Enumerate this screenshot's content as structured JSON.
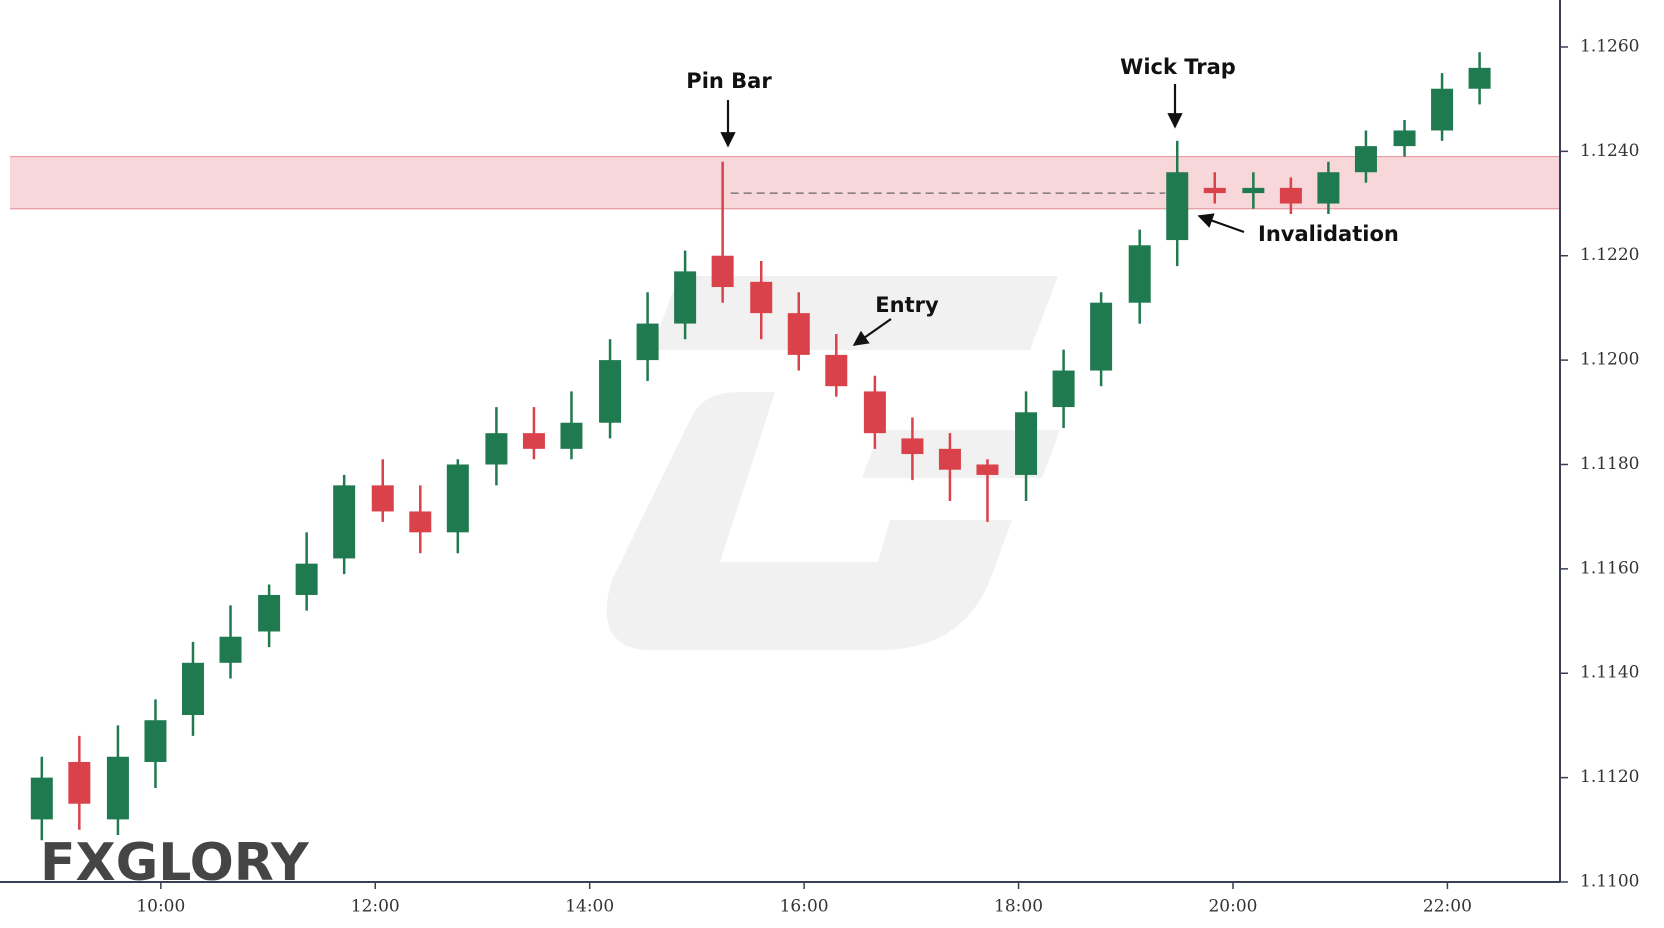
{
  "chart_data": {
    "type": "candlestick",
    "x": [
      8.89,
      9.24,
      9.6,
      9.95,
      10.3,
      10.65,
      11.01,
      11.36,
      11.71,
      12.07,
      12.42,
      12.77,
      13.13,
      13.48,
      13.83,
      14.19,
      14.54,
      14.89,
      15.24,
      15.6,
      15.95,
      16.3,
      16.66,
      17.01,
      17.36,
      17.71,
      18.07,
      18.42,
      18.77,
      19.13,
      19.48,
      19.83,
      20.19,
      20.54,
      20.89,
      21.24,
      21.6,
      21.95,
      22.3
    ],
    "open": [
      1.1112,
      1.1123,
      1.1112,
      1.1123,
      1.1132,
      1.1142,
      1.1148,
      1.1155,
      1.1162,
      1.1176,
      1.1171,
      1.1167,
      1.118,
      1.1186,
      1.1183,
      1.1188,
      1.12,
      1.1207,
      1.122,
      1.1215,
      1.1209,
      1.1201,
      1.1194,
      1.1185,
      1.1183,
      1.118,
      1.1178,
      1.1191,
      1.1198,
      1.1211,
      1.1223,
      1.1233,
      1.1232,
      1.1233,
      1.123,
      1.1236,
      1.1241,
      1.1244,
      1.1252
    ],
    "high": [
      1.1124,
      1.1128,
      1.113,
      1.1135,
      1.1146,
      1.1153,
      1.1157,
      1.1167,
      1.1178,
      1.1181,
      1.1176,
      1.1181,
      1.1191,
      1.1191,
      1.1194,
      1.1204,
      1.1213,
      1.1221,
      1.1238,
      1.1219,
      1.1213,
      1.1205,
      1.1197,
      1.1189,
      1.1186,
      1.1181,
      1.1194,
      1.1202,
      1.1213,
      1.1225,
      1.1242,
      1.1236,
      1.1236,
      1.1235,
      1.1238,
      1.1244,
      1.1246,
      1.1255,
      1.1259
    ],
    "low": [
      1.1108,
      1.111,
      1.1109,
      1.1118,
      1.1128,
      1.1139,
      1.1145,
      1.1152,
      1.1159,
      1.1169,
      1.1163,
      1.1163,
      1.1176,
      1.1181,
      1.1181,
      1.1185,
      1.1196,
      1.1204,
      1.1211,
      1.1204,
      1.1198,
      1.1193,
      1.1183,
      1.1177,
      1.1173,
      1.1169,
      1.1173,
      1.1187,
      1.1195,
      1.1207,
      1.1218,
      1.123,
      1.1229,
      1.1228,
      1.1228,
      1.1234,
      1.1239,
      1.1242,
      1.1249
    ],
    "close": [
      1.112,
      1.1115,
      1.1124,
      1.1131,
      1.1142,
      1.1147,
      1.1155,
      1.1161,
      1.1176,
      1.1171,
      1.1167,
      1.118,
      1.1186,
      1.1183,
      1.1188,
      1.12,
      1.1207,
      1.1217,
      1.1214,
      1.1209,
      1.1201,
      1.1195,
      1.1186,
      1.1182,
      1.1179,
      1.1178,
      1.119,
      1.1198,
      1.1211,
      1.1222,
      1.1236,
      1.1232,
      1.1233,
      1.123,
      1.1236,
      1.1241,
      1.1244,
      1.1252,
      1.1256
    ],
    "up_color": "#1f7a50",
    "down_color": "#d9424a",
    "zone": [
      1.1229,
      1.1239
    ],
    "zone_color": "#f6c9ce",
    "dashed_level": 1.1232,
    "xlim": [
      8.5,
      23.05
    ],
    "ylim": [
      1.11,
      1.1269
    ],
    "xticks": [
      {
        "value": 10,
        "label": "10:00"
      },
      {
        "value": 12,
        "label": "12:00"
      },
      {
        "value": 14,
        "label": "14:00"
      },
      {
        "value": 16,
        "label": "16:00"
      },
      {
        "value": 18,
        "label": "18:00"
      },
      {
        "value": 20,
        "label": "20:00"
      },
      {
        "value": 22,
        "label": "22:00"
      }
    ],
    "yticks": [
      {
        "value": 1.11,
        "label": "1.1100"
      },
      {
        "value": 1.112,
        "label": "1.1120"
      },
      {
        "value": 1.114,
        "label": "1.1140"
      },
      {
        "value": 1.116,
        "label": "1.1160"
      },
      {
        "value": 1.118,
        "label": "1.1180"
      },
      {
        "value": 1.12,
        "label": "1.1200"
      },
      {
        "value": 1.122,
        "label": "1.1220"
      },
      {
        "value": 1.124,
        "label": "1.1240"
      },
      {
        "value": 1.126,
        "label": "1.1260"
      }
    ],
    "annotations": [
      "Pin Bar",
      "Wick Trap",
      "Entry",
      "Invalidation"
    ],
    "logo": "FXGLORY"
  }
}
